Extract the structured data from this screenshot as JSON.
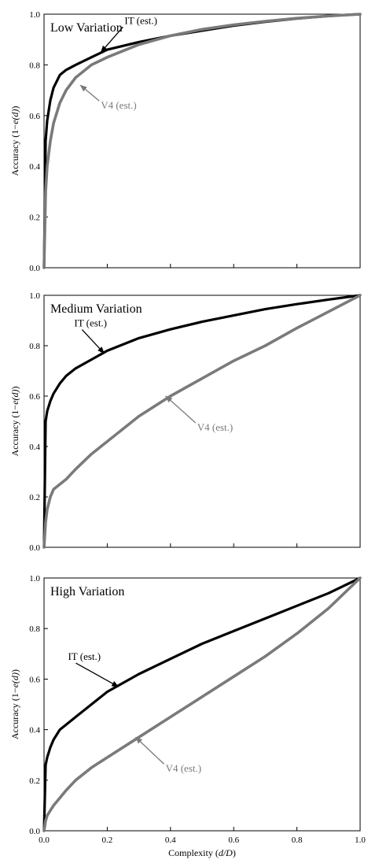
{
  "figure": {
    "xlabel_prefix": "Complexity (",
    "xlabel_var": "d/D",
    "xlabel_suffix": ")",
    "ylabel_prefix": "Accuracy (1−",
    "ylabel_var": "e(d)",
    "ylabel_suffix": ")"
  },
  "colors": {
    "it": "#000000",
    "v4": "#7a7a7a"
  },
  "chart_data": [
    {
      "type": "line",
      "title": "Low Variation",
      "xlim": [
        0,
        1
      ],
      "ylim": [
        0,
        1
      ],
      "xticks": [
        "0.0",
        "0.2",
        "0.4",
        "0.6",
        "0.8",
        "1.0"
      ],
      "yticks": [
        "0.0",
        "0.2",
        "0.4",
        "0.6",
        "0.8",
        "1.0"
      ],
      "show_xticklabels": false,
      "grid": false,
      "series": [
        {
          "name": "IT (est.)",
          "color": "#000000",
          "x": [
            0,
            0.005,
            0.01,
            0.02,
            0.03,
            0.05,
            0.07,
            0.1,
            0.15,
            0.2,
            0.3,
            0.4,
            0.5,
            0.6,
            0.7,
            0.8,
            0.9,
            1.0
          ],
          "y": [
            0,
            0.5,
            0.58,
            0.66,
            0.71,
            0.76,
            0.78,
            0.8,
            0.83,
            0.86,
            0.89,
            0.915,
            0.935,
            0.955,
            0.97,
            0.983,
            0.993,
            1.0
          ]
        },
        {
          "name": "V4 (est.)",
          "color": "#7a7a7a",
          "x": [
            0,
            0.005,
            0.01,
            0.02,
            0.03,
            0.05,
            0.07,
            0.1,
            0.15,
            0.2,
            0.3,
            0.4,
            0.5,
            0.6,
            0.7,
            0.8,
            0.9,
            1.0
          ],
          "y": [
            0,
            0.3,
            0.4,
            0.5,
            0.57,
            0.65,
            0.7,
            0.75,
            0.8,
            0.83,
            0.88,
            0.915,
            0.94,
            0.958,
            0.972,
            0.984,
            0.993,
            1.0
          ]
        }
      ],
      "annotations": [
        {
          "text": "IT (est.)",
          "series": 0,
          "target_x": 0.18,
          "target_y": 0.85
        },
        {
          "text": "V4 (est.)",
          "series": 1,
          "target_x": 0.115,
          "target_y": 0.72
        }
      ]
    },
    {
      "type": "line",
      "title": "Medium Variation",
      "xlim": [
        0,
        1
      ],
      "ylim": [
        0,
        1
      ],
      "xticks": [
        "0.0",
        "0.2",
        "0.4",
        "0.6",
        "0.8",
        "1.0"
      ],
      "yticks": [
        "0.0",
        "0.2",
        "0.4",
        "0.6",
        "0.8",
        "1.0"
      ],
      "show_xticklabels": false,
      "grid": false,
      "series": [
        {
          "name": "IT (est.)",
          "color": "#000000",
          "x": [
            0,
            0.005,
            0.01,
            0.02,
            0.03,
            0.05,
            0.07,
            0.1,
            0.15,
            0.2,
            0.3,
            0.4,
            0.5,
            0.6,
            0.7,
            0.8,
            0.9,
            1.0
          ],
          "y": [
            0,
            0.5,
            0.54,
            0.58,
            0.61,
            0.65,
            0.68,
            0.71,
            0.745,
            0.78,
            0.83,
            0.865,
            0.895,
            0.92,
            0.945,
            0.965,
            0.983,
            1.0
          ]
        },
        {
          "name": "V4 (est.)",
          "color": "#7a7a7a",
          "x": [
            0,
            0.005,
            0.01,
            0.02,
            0.03,
            0.05,
            0.07,
            0.1,
            0.15,
            0.2,
            0.3,
            0.4,
            0.5,
            0.6,
            0.7,
            0.8,
            0.9,
            1.0
          ],
          "y": [
            0,
            0.1,
            0.15,
            0.2,
            0.23,
            0.25,
            0.27,
            0.31,
            0.37,
            0.42,
            0.52,
            0.6,
            0.67,
            0.74,
            0.8,
            0.87,
            0.935,
            1.0
          ]
        }
      ],
      "annotations": [
        {
          "text": "IT (est.)",
          "series": 0,
          "target_x": 0.19,
          "target_y": 0.77
        },
        {
          "text": "V4 (est.)",
          "series": 1,
          "target_x": 0.385,
          "target_y": 0.6
        }
      ]
    },
    {
      "type": "line",
      "title": "High Variation",
      "xlim": [
        0,
        1
      ],
      "ylim": [
        0,
        1
      ],
      "xticks": [
        "0.0",
        "0.2",
        "0.4",
        "0.6",
        "0.8",
        "1.0"
      ],
      "yticks": [
        "0.0",
        "0.2",
        "0.4",
        "0.6",
        "0.8",
        "1.0"
      ],
      "show_xticklabels": true,
      "grid": false,
      "series": [
        {
          "name": "IT (est.)",
          "color": "#000000",
          "x": [
            0,
            0.005,
            0.01,
            0.02,
            0.03,
            0.05,
            0.07,
            0.1,
            0.15,
            0.2,
            0.3,
            0.4,
            0.5,
            0.6,
            0.7,
            0.8,
            0.9,
            1.0
          ],
          "y": [
            0,
            0.26,
            0.29,
            0.33,
            0.36,
            0.4,
            0.42,
            0.45,
            0.5,
            0.55,
            0.62,
            0.68,
            0.74,
            0.79,
            0.84,
            0.89,
            0.94,
            1.0
          ]
        },
        {
          "name": "V4 (est.)",
          "color": "#7a7a7a",
          "x": [
            0,
            0.005,
            0.01,
            0.02,
            0.03,
            0.05,
            0.07,
            0.1,
            0.15,
            0.2,
            0.3,
            0.4,
            0.5,
            0.6,
            0.7,
            0.8,
            0.9,
            1.0
          ],
          "y": [
            0,
            0.04,
            0.06,
            0.08,
            0.1,
            0.13,
            0.16,
            0.2,
            0.25,
            0.29,
            0.37,
            0.45,
            0.53,
            0.61,
            0.69,
            0.78,
            0.88,
            1.0
          ]
        }
      ],
      "annotations": [
        {
          "text": "IT (est.)",
          "series": 0,
          "target_x": 0.235,
          "target_y": 0.57
        },
        {
          "text": "V4 (est.)",
          "series": 1,
          "target_x": 0.29,
          "target_y": 0.37
        }
      ]
    }
  ]
}
